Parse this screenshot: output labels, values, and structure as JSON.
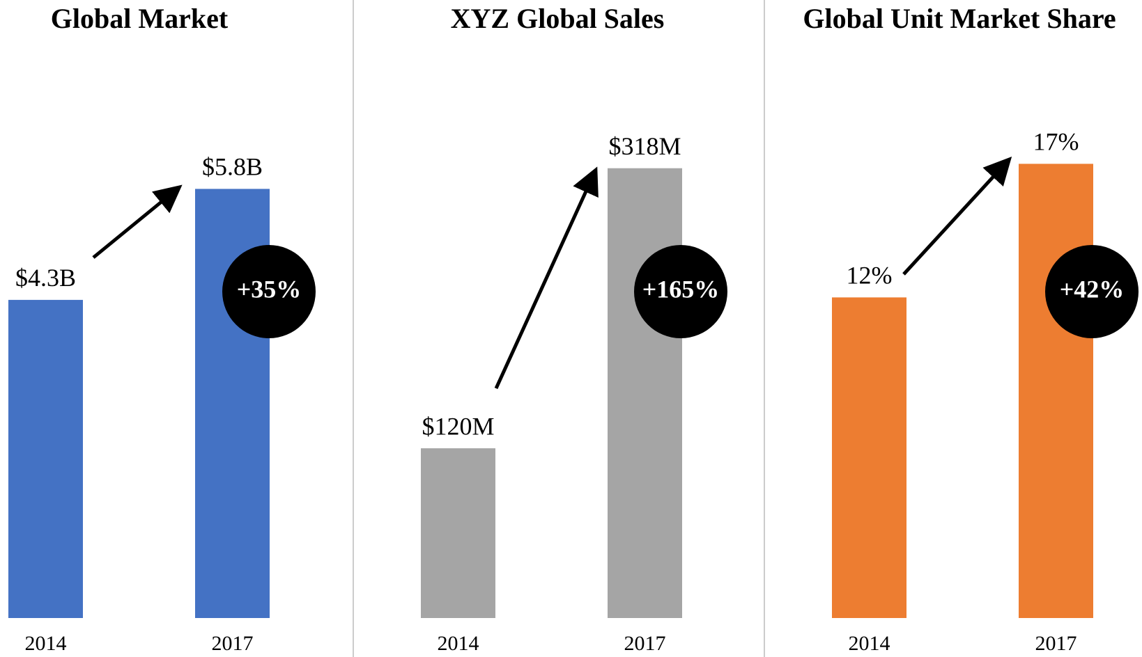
{
  "chart_data": [
    {
      "type": "bar",
      "title": "Global Market",
      "categories": [
        "2014",
        "2017"
      ],
      "values": [
        4.3,
        5.8
      ],
      "value_labels": [
        "$4.3B",
        "$5.8B"
      ],
      "color": "#4472c4",
      "ylim": [
        0,
        6.5
      ],
      "annotation": "+35%"
    },
    {
      "type": "bar",
      "title": "XYZ Global Sales",
      "categories": [
        "2014",
        "2017"
      ],
      "values": [
        120,
        318
      ],
      "value_labels": [
        "$120M",
        "$318M"
      ],
      "color": "#a5a5a5",
      "ylim": [
        0,
        340
      ],
      "annotation": "+165%"
    },
    {
      "type": "bar",
      "title": "Global Unit Market Share",
      "categories": [
        "2014",
        "2017"
      ],
      "values": [
        12,
        17
      ],
      "value_labels": [
        "12%",
        "17%"
      ],
      "color": "#ed7d31",
      "ylim": [
        0,
        18
      ],
      "annotation": "+42%"
    }
  ]
}
